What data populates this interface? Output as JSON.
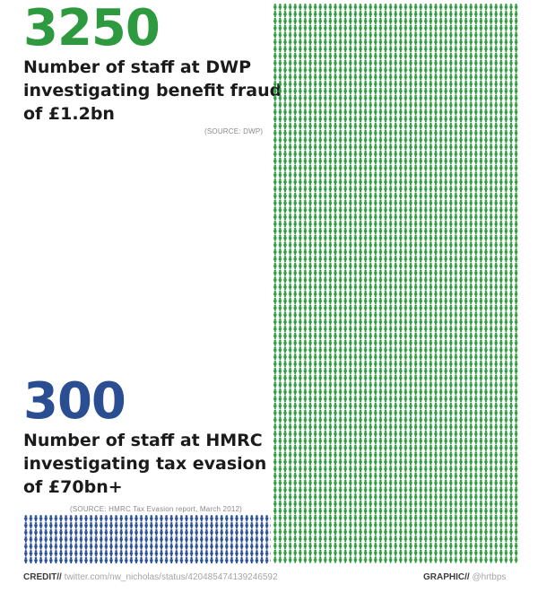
{
  "dwp": {
    "count": "3250",
    "lines": [
      "Number of staff at DWP",
      "investigating benefit fraud",
      "of £1.2bn"
    ],
    "source": "(SOURCE: DWP)",
    "color": "#2e9a3f"
  },
  "hmrc": {
    "count": "300",
    "lines": [
      "Number of staff at HMRC",
      "investigating tax evasion",
      "of £70bn+"
    ],
    "source": "(SOURCE: HMRC Tax Evasion report, March 2012)",
    "color": "#2a4e92"
  },
  "footer": {
    "credit_label": "CREDIT//",
    "credit_value": "twitter.com/nw_nicholas/status/420485474139246592",
    "graphic_label": "GRAPHIC//",
    "graphic_value": "@hrtbps"
  },
  "icons": {
    "person": "person-icon"
  }
}
